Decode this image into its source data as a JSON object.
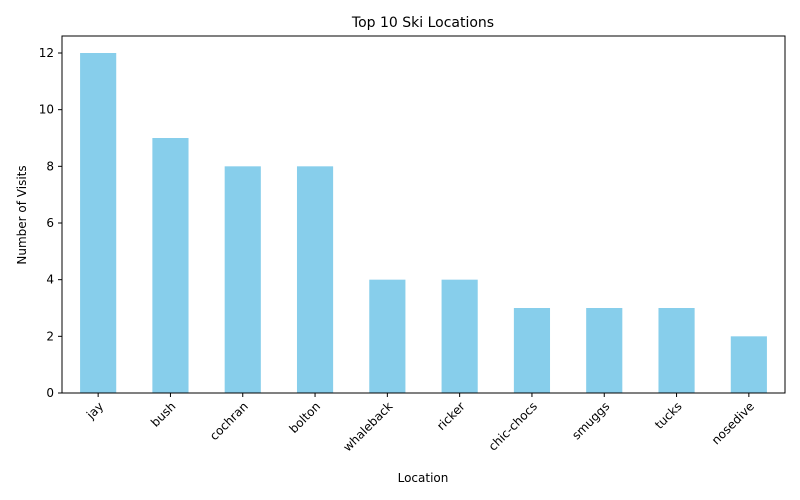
{
  "chart_data": {
    "type": "bar",
    "title": "Top 10 Ski Locations",
    "xlabel": "Location",
    "ylabel": "Number of Visits",
    "categories": [
      "jay",
      "bush",
      "cochran",
      "bolton",
      "whaleback",
      "ricker",
      "chic-chocs",
      "smuggs",
      "tucks",
      "nosedive"
    ],
    "values": [
      12,
      9,
      8,
      8,
      4,
      4,
      3,
      3,
      3,
      2
    ],
    "ylim": [
      0,
      12.6
    ],
    "yticks": [
      0,
      2,
      4,
      6,
      8,
      10,
      12
    ],
    "grid": false,
    "legend": "none",
    "bar_color": "#87CEEB"
  }
}
